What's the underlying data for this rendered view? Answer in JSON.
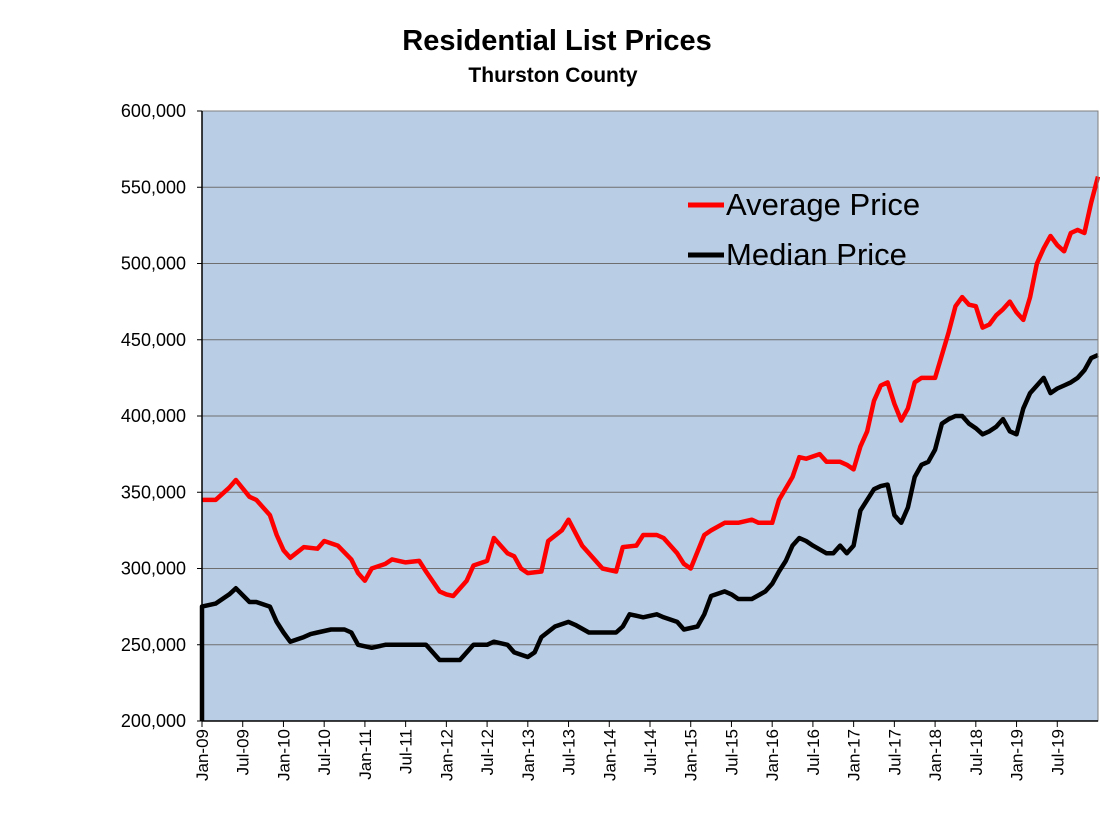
{
  "chart_data": {
    "type": "line",
    "title": "Residential List Prices",
    "subtitle": "Thurston County",
    "xlabel": "",
    "ylabel": "",
    "ylim": [
      200000,
      600000
    ],
    "y_ticks": [
      200000,
      250000,
      300000,
      350000,
      400000,
      450000,
      500000,
      550000,
      600000
    ],
    "y_tick_labels": [
      "200,000",
      "250,000",
      "300,000",
      "350,000",
      "400,000",
      "450,000",
      "500,000",
      "550,000",
      "600,000"
    ],
    "x_ticks": [
      "Jan-09",
      "Jul-09",
      "Jan-10",
      "Jul-10",
      "Jan-11",
      "Jul-11",
      "Jan-12",
      "Jul-12",
      "Jan-13",
      "Jul-13",
      "Jan-14",
      "Jul-14",
      "Jan-15",
      "Jul-15",
      "Jan-16",
      "Jul-16",
      "Jan-17",
      "Jul-17",
      "Jan-18",
      "Jul-18",
      "Jan-19",
      "Jul-19"
    ],
    "x_start": "2009-01",
    "x_end": "2020-01",
    "grid": true,
    "legend_position": "top-right",
    "plot_background": "#b9cde5",
    "series": [
      {
        "name": "Average Price",
        "color": "#ff0000",
        "points": [
          [
            "2009-01",
            345000
          ],
          [
            "2009-03",
            345000
          ],
          [
            "2009-05",
            353000
          ],
          [
            "2009-06",
            358000
          ],
          [
            "2009-08",
            347000
          ],
          [
            "2009-09",
            345000
          ],
          [
            "2009-11",
            335000
          ],
          [
            "2009-12",
            322000
          ],
          [
            "2010-01",
            312000
          ],
          [
            "2010-02",
            307000
          ],
          [
            "2010-04",
            314000
          ],
          [
            "2010-06",
            313000
          ],
          [
            "2010-07",
            318000
          ],
          [
            "2010-09",
            315000
          ],
          [
            "2010-11",
            306000
          ],
          [
            "2010-12",
            297000
          ],
          [
            "2011-01",
            292000
          ],
          [
            "2011-02",
            300000
          ],
          [
            "2011-04",
            303000
          ],
          [
            "2011-05",
            306000
          ],
          [
            "2011-07",
            304000
          ],
          [
            "2011-09",
            305000
          ],
          [
            "2011-10",
            298000
          ],
          [
            "2011-12",
            285000
          ],
          [
            "2012-01",
            283000
          ],
          [
            "2012-02",
            282000
          ],
          [
            "2012-04",
            292000
          ],
          [
            "2012-05",
            302000
          ],
          [
            "2012-07",
            305000
          ],
          [
            "2012-08",
            320000
          ],
          [
            "2012-10",
            310000
          ],
          [
            "2012-11",
            308000
          ],
          [
            "2012-12",
            300000
          ],
          [
            "2013-01",
            297000
          ],
          [
            "2013-03",
            298000
          ],
          [
            "2013-04",
            318000
          ],
          [
            "2013-06",
            325000
          ],
          [
            "2013-07",
            332000
          ],
          [
            "2013-09",
            315000
          ],
          [
            "2013-10",
            310000
          ],
          [
            "2013-12",
            300000
          ],
          [
            "2014-02",
            298000
          ],
          [
            "2014-03",
            314000
          ],
          [
            "2014-05",
            315000
          ],
          [
            "2014-06",
            322000
          ],
          [
            "2014-08",
            322000
          ],
          [
            "2014-09",
            320000
          ],
          [
            "2014-11",
            310000
          ],
          [
            "2014-12",
            303000
          ],
          [
            "2015-01",
            300000
          ],
          [
            "2015-03",
            322000
          ],
          [
            "2015-04",
            325000
          ],
          [
            "2015-06",
            330000
          ],
          [
            "2015-08",
            330000
          ],
          [
            "2015-10",
            332000
          ],
          [
            "2015-11",
            330000
          ],
          [
            "2016-01",
            330000
          ],
          [
            "2016-02",
            345000
          ],
          [
            "2016-04",
            360000
          ],
          [
            "2016-05",
            373000
          ],
          [
            "2016-06",
            372000
          ],
          [
            "2016-08",
            375000
          ],
          [
            "2016-09",
            370000
          ],
          [
            "2016-11",
            370000
          ],
          [
            "2016-12",
            368000
          ],
          [
            "2017-01",
            365000
          ],
          [
            "2017-02",
            380000
          ],
          [
            "2017-03",
            390000
          ],
          [
            "2017-04",
            410000
          ],
          [
            "2017-05",
            420000
          ],
          [
            "2017-06",
            422000
          ],
          [
            "2017-07",
            408000
          ],
          [
            "2017-08",
            397000
          ],
          [
            "2017-09",
            405000
          ],
          [
            "2017-10",
            422000
          ],
          [
            "2017-11",
            425000
          ],
          [
            "2017-12",
            425000
          ],
          [
            "2018-01",
            425000
          ],
          [
            "2018-02",
            440000
          ],
          [
            "2018-03",
            455000
          ],
          [
            "2018-04",
            472000
          ],
          [
            "2018-05",
            478000
          ],
          [
            "2018-06",
            473000
          ],
          [
            "2018-07",
            472000
          ],
          [
            "2018-08",
            458000
          ],
          [
            "2018-09",
            460000
          ],
          [
            "2018-10",
            466000
          ],
          [
            "2018-11",
            470000
          ],
          [
            "2018-12",
            475000
          ],
          [
            "2019-01",
            468000
          ],
          [
            "2019-02",
            463000
          ],
          [
            "2019-03",
            478000
          ],
          [
            "2019-04",
            500000
          ],
          [
            "2019-05",
            510000
          ],
          [
            "2019-06",
            518000
          ],
          [
            "2019-07",
            512000
          ],
          [
            "2019-08",
            508000
          ],
          [
            "2019-09",
            520000
          ],
          [
            "2019-10",
            522000
          ],
          [
            "2019-11",
            520000
          ],
          [
            "2019-12",
            540000
          ],
          [
            "2020-01",
            557000
          ]
        ]
      },
      {
        "name": "Median Price",
        "color": "#000000",
        "points": [
          [
            "2009-01",
            200000
          ],
          [
            "2009-01",
            275000
          ],
          [
            "2009-03",
            277000
          ],
          [
            "2009-04",
            280000
          ],
          [
            "2009-05",
            283000
          ],
          [
            "2009-06",
            287000
          ],
          [
            "2009-08",
            278000
          ],
          [
            "2009-09",
            278000
          ],
          [
            "2009-11",
            275000
          ],
          [
            "2009-12",
            265000
          ],
          [
            "2010-01",
            258000
          ],
          [
            "2010-02",
            252000
          ],
          [
            "2010-04",
            255000
          ],
          [
            "2010-05",
            257000
          ],
          [
            "2010-06",
            258000
          ],
          [
            "2010-08",
            260000
          ],
          [
            "2010-10",
            260000
          ],
          [
            "2010-11",
            258000
          ],
          [
            "2010-12",
            250000
          ],
          [
            "2011-02",
            248000
          ],
          [
            "2011-04",
            250000
          ],
          [
            "2011-06",
            250000
          ],
          [
            "2011-08",
            250000
          ],
          [
            "2011-10",
            250000
          ],
          [
            "2011-11",
            245000
          ],
          [
            "2011-12",
            240000
          ],
          [
            "2012-02",
            240000
          ],
          [
            "2012-03",
            240000
          ],
          [
            "2012-05",
            250000
          ],
          [
            "2012-07",
            250000
          ],
          [
            "2012-08",
            252000
          ],
          [
            "2012-10",
            250000
          ],
          [
            "2012-11",
            245000
          ],
          [
            "2013-01",
            242000
          ],
          [
            "2013-02",
            245000
          ],
          [
            "2013-03",
            255000
          ],
          [
            "2013-05",
            262000
          ],
          [
            "2013-07",
            265000
          ],
          [
            "2013-08",
            263000
          ],
          [
            "2013-10",
            258000
          ],
          [
            "2013-12",
            258000
          ],
          [
            "2014-02",
            258000
          ],
          [
            "2014-03",
            262000
          ],
          [
            "2014-04",
            270000
          ],
          [
            "2014-06",
            268000
          ],
          [
            "2014-08",
            270000
          ],
          [
            "2014-09",
            268000
          ],
          [
            "2014-11",
            265000
          ],
          [
            "2014-12",
            260000
          ],
          [
            "2015-02",
            262000
          ],
          [
            "2015-03",
            270000
          ],
          [
            "2015-04",
            282000
          ],
          [
            "2015-06",
            285000
          ],
          [
            "2015-07",
            283000
          ],
          [
            "2015-08",
            280000
          ],
          [
            "2015-10",
            280000
          ],
          [
            "2015-12",
            285000
          ],
          [
            "2016-01",
            290000
          ],
          [
            "2016-02",
            298000
          ],
          [
            "2016-03",
            305000
          ],
          [
            "2016-04",
            315000
          ],
          [
            "2016-05",
            320000
          ],
          [
            "2016-06",
            318000
          ],
          [
            "2016-07",
            315000
          ],
          [
            "2016-09",
            310000
          ],
          [
            "2016-10",
            310000
          ],
          [
            "2016-11",
            315000
          ],
          [
            "2016-12",
            310000
          ],
          [
            "2017-01",
            315000
          ],
          [
            "2017-02",
            338000
          ],
          [
            "2017-04",
            352000
          ],
          [
            "2017-05",
            354000
          ],
          [
            "2017-06",
            355000
          ],
          [
            "2017-07",
            335000
          ],
          [
            "2017-08",
            330000
          ],
          [
            "2017-09",
            340000
          ],
          [
            "2017-10",
            360000
          ],
          [
            "2017-11",
            368000
          ],
          [
            "2017-12",
            370000
          ],
          [
            "2018-01",
            378000
          ],
          [
            "2018-02",
            395000
          ],
          [
            "2018-03",
            398000
          ],
          [
            "2018-04",
            400000
          ],
          [
            "2018-05",
            400000
          ],
          [
            "2018-06",
            395000
          ],
          [
            "2018-07",
            392000
          ],
          [
            "2018-08",
            388000
          ],
          [
            "2018-09",
            390000
          ],
          [
            "2018-10",
            393000
          ],
          [
            "2018-11",
            398000
          ],
          [
            "2018-12",
            390000
          ],
          [
            "2019-01",
            388000
          ],
          [
            "2019-02",
            405000
          ],
          [
            "2019-03",
            415000
          ],
          [
            "2019-04",
            420000
          ],
          [
            "2019-05",
            425000
          ],
          [
            "2019-06",
            415000
          ],
          [
            "2019-07",
            418000
          ],
          [
            "2019-08",
            420000
          ],
          [
            "2019-09",
            422000
          ],
          [
            "2019-10",
            425000
          ],
          [
            "2019-11",
            430000
          ],
          [
            "2019-12",
            438000
          ],
          [
            "2020-01",
            440000
          ]
        ]
      }
    ]
  }
}
